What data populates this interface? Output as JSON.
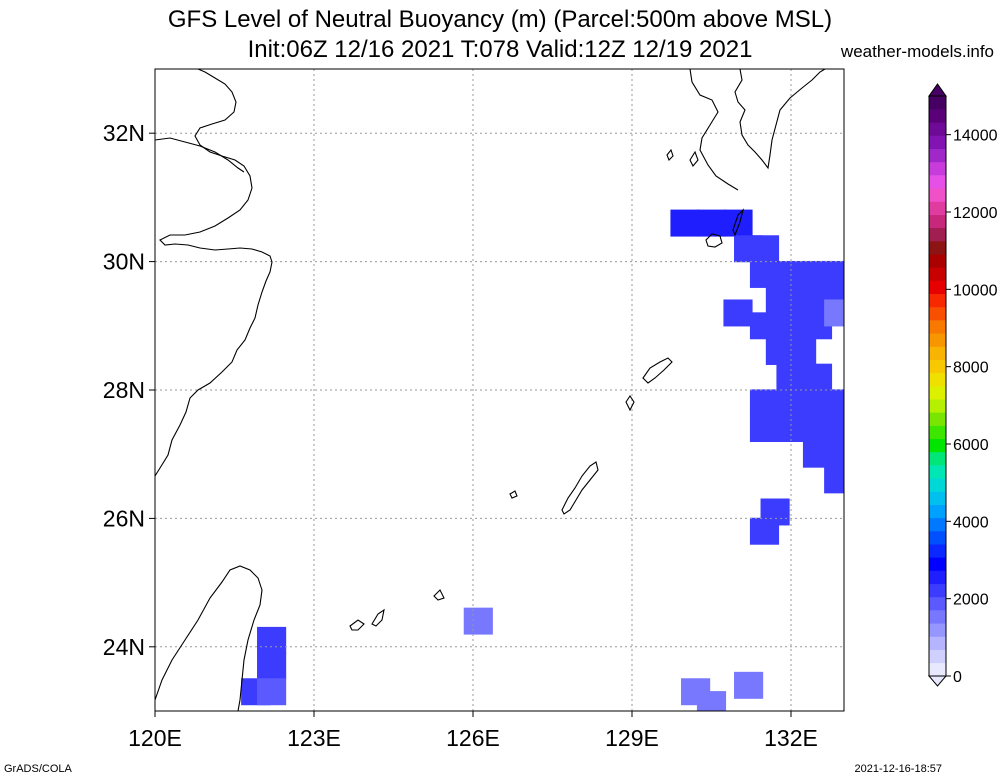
{
  "header": {
    "title_line1": "GFS Level of Neutral Buoyancy (m) (Parcel:500m above MSL)",
    "title_line2": "Init:06Z 12/16 2021 T:078 Valid:12Z 12/19 2021",
    "brand": "weather-models.info"
  },
  "footer": {
    "left": "GrADS/COLA",
    "right": "2021-12-16-18:57"
  },
  "chart_data": {
    "type": "heatmap",
    "title": "GFS Level of Neutral Buoyancy (m) (Parcel:500m above MSL)",
    "subtitle": "Init:06Z 12/16 2021 T:078 Valid:12Z 12/19 2021",
    "xlabel": "",
    "ylabel": "",
    "xlim": [
      120,
      133.0
    ],
    "ylim": [
      23.0,
      33.0
    ],
    "x_ticks": [
      120,
      123,
      126,
      129,
      132
    ],
    "x_tick_labels": [
      "120E",
      "123E",
      "126E",
      "129E",
      "132E"
    ],
    "y_ticks": [
      24,
      26,
      28,
      30,
      32
    ],
    "y_tick_labels": [
      "24N",
      "26N",
      "28N",
      "30N",
      "32N"
    ],
    "grid": true,
    "colorbar": {
      "ticks": [
        0,
        2000,
        4000,
        6000,
        8000,
        10000,
        12000,
        14000
      ],
      "tick_labels": [
        "0",
        "2000",
        "4000",
        "6000",
        "8000",
        "10000",
        "12000",
        "14000"
      ],
      "colors": [
        "#e8e8ff",
        "#d0d0ff",
        "#b4b4ff",
        "#9696ff",
        "#7878ff",
        "#5a5aff",
        "#3c3cff",
        "#1e1eff",
        "#0000ff",
        "#0a28ff",
        "#0050ff",
        "#0078ff",
        "#00a0ff",
        "#00c0f0",
        "#00d8d8",
        "#00e6b4",
        "#00e678",
        "#00e600",
        "#3ce600",
        "#78e600",
        "#b4f000",
        "#dcf000",
        "#f0e000",
        "#f8c800",
        "#f8b400",
        "#f89600",
        "#f87800",
        "#f85000",
        "#f82800",
        "#e60000",
        "#c80000",
        "#aa0000",
        "#8c1414",
        "#a01e50",
        "#c8287c",
        "#e03ca0",
        "#f050c8",
        "#e650e6",
        "#c83cdc",
        "#a028c8",
        "#8214b4",
        "#6e0a96",
        "#5a0078",
        "#460064"
      ]
    },
    "cells": [
      {
        "lon": 130.0,
        "lat": 30.6,
        "v": 2400
      },
      {
        "lon": 130.5,
        "lat": 30.6,
        "v": 2400
      },
      {
        "lon": 131.0,
        "lat": 30.6,
        "v": 2400
      },
      {
        "lon": 131.2,
        "lat": 30.2,
        "v": 2200
      },
      {
        "lon": 131.5,
        "lat": 30.2,
        "v": 2200
      },
      {
        "lon": 131.5,
        "lat": 29.8,
        "v": 2200
      },
      {
        "lon": 132.0,
        "lat": 29.8,
        "v": 2100
      },
      {
        "lon": 132.5,
        "lat": 29.8,
        "v": 2100
      },
      {
        "lon": 132.8,
        "lat": 29.8,
        "v": 2100
      },
      {
        "lon": 131.8,
        "lat": 29.4,
        "v": 2100
      },
      {
        "lon": 132.3,
        "lat": 29.4,
        "v": 2100
      },
      {
        "lon": 132.8,
        "lat": 29.4,
        "v": 2100
      },
      {
        "lon": 131.0,
        "lat": 29.2,
        "v": 2200
      },
      {
        "lon": 131.5,
        "lat": 29.0,
        "v": 2200
      },
      {
        "lon": 132.0,
        "lat": 29.0,
        "v": 2100
      },
      {
        "lon": 132.5,
        "lat": 29.0,
        "v": 2100
      },
      {
        "lon": 132.9,
        "lat": 29.2,
        "v": 1600
      },
      {
        "lon": 131.8,
        "lat": 28.6,
        "v": 2100
      },
      {
        "lon": 132.2,
        "lat": 28.6,
        "v": 2100
      },
      {
        "lon": 132.0,
        "lat": 28.2,
        "v": 2100
      },
      {
        "lon": 132.5,
        "lat": 28.2,
        "v": 2100
      },
      {
        "lon": 131.5,
        "lat": 27.8,
        "v": 2100
      },
      {
        "lon": 132.0,
        "lat": 27.8,
        "v": 2100
      },
      {
        "lon": 132.5,
        "lat": 27.8,
        "v": 2100
      },
      {
        "lon": 132.9,
        "lat": 27.8,
        "v": 2100
      },
      {
        "lon": 131.5,
        "lat": 27.4,
        "v": 2100
      },
      {
        "lon": 132.0,
        "lat": 27.4,
        "v": 2100
      },
      {
        "lon": 132.5,
        "lat": 27.4,
        "v": 2100
      },
      {
        "lon": 132.9,
        "lat": 27.4,
        "v": 2100
      },
      {
        "lon": 132.5,
        "lat": 27.0,
        "v": 2100
      },
      {
        "lon": 132.9,
        "lat": 27.0,
        "v": 2100
      },
      {
        "lon": 132.9,
        "lat": 26.6,
        "v": 2100
      },
      {
        "lon": 131.7,
        "lat": 26.1,
        "v": 2200
      },
      {
        "lon": 131.5,
        "lat": 25.8,
        "v": 2200
      },
      {
        "lon": 126.1,
        "lat": 24.4,
        "v": 1700
      },
      {
        "lon": 122.2,
        "lat": 24.1,
        "v": 2200
      },
      {
        "lon": 122.2,
        "lat": 23.7,
        "v": 2200
      },
      {
        "lon": 121.9,
        "lat": 23.3,
        "v": 2200
      },
      {
        "lon": 122.2,
        "lat": 23.3,
        "v": 1900
      },
      {
        "lon": 130.2,
        "lat": 23.3,
        "v": 1700
      },
      {
        "lon": 130.5,
        "lat": 23.1,
        "v": 1700
      },
      {
        "lon": 131.2,
        "lat": 23.4,
        "v": 1700
      }
    ]
  }
}
